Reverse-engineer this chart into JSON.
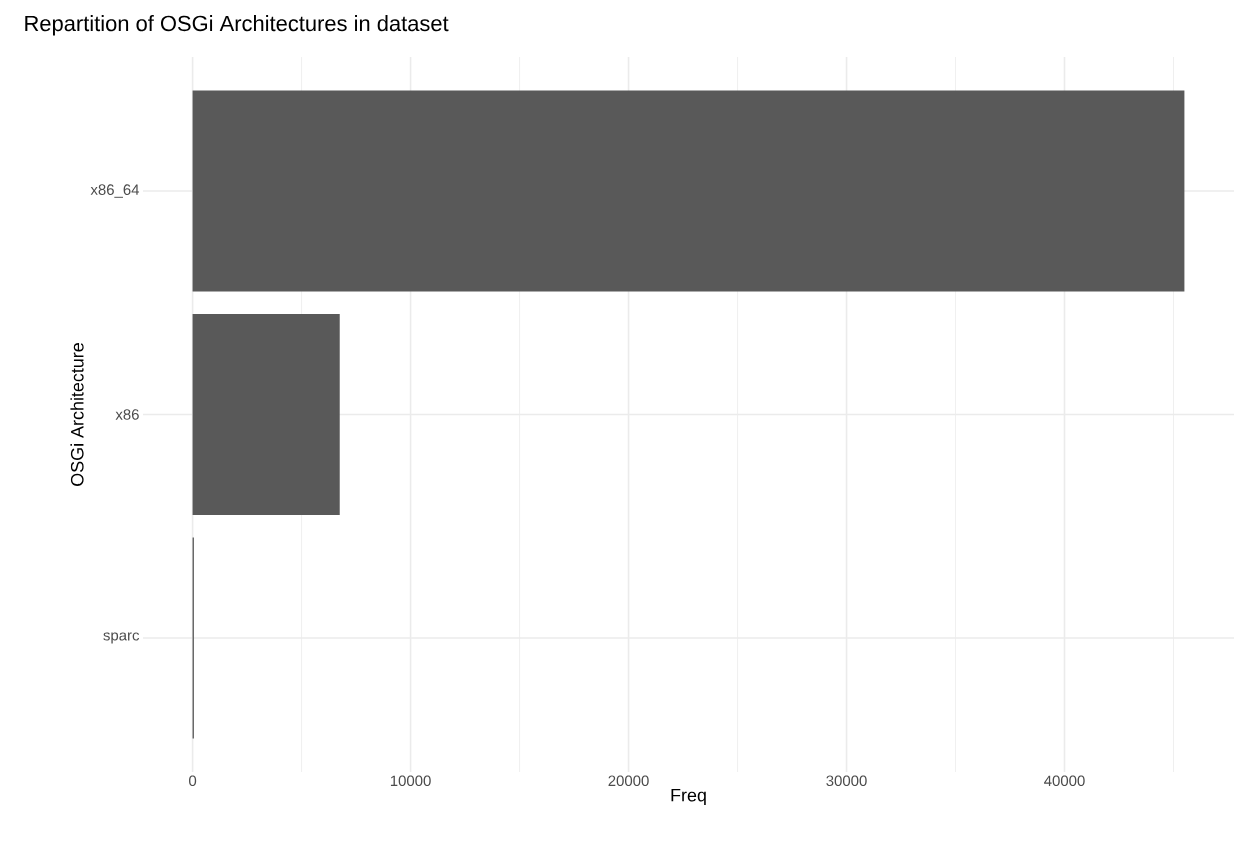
{
  "chart_data": {
    "type": "bar",
    "orientation": "horizontal",
    "title": "Repartition of OSGi Architectures in dataset",
    "xlabel": "Freq",
    "ylabel": "OSGi Architecture",
    "categories": [
      "x86_64",
      "x86",
      "sparc"
    ],
    "values": [
      45500,
      6750,
      60
    ],
    "color": "#595959",
    "xlim": [
      -2275,
      47775
    ],
    "xticks": [
      0,
      {
        "value": 5000,
        "label": null
      },
      10000,
      {
        "value": 15000,
        "label": null
      },
      20000,
      {
        "value": 25000,
        "label": null
      },
      30000,
      {
        "value": 35000,
        "label": null
      },
      40000,
      {
        "value": 45000,
        "label": null
      }
    ],
    "grid": true
  }
}
